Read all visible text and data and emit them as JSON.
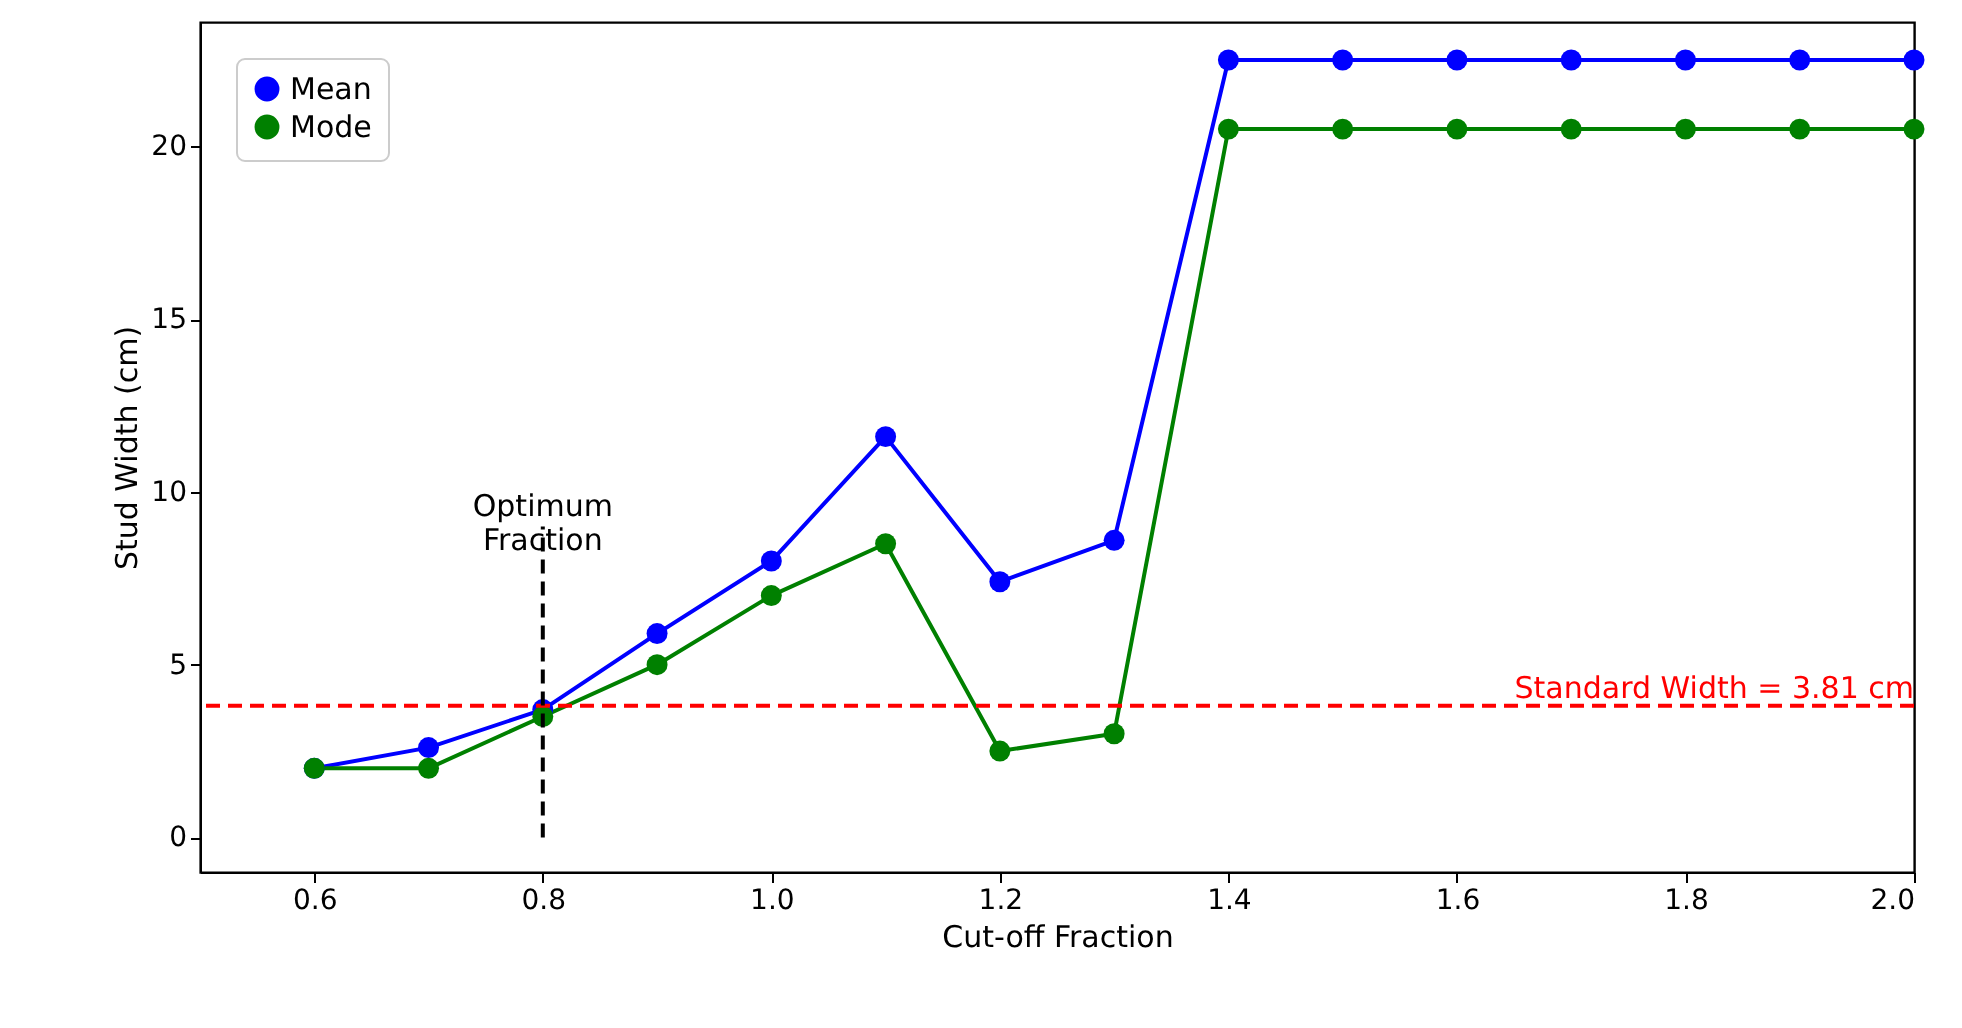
{
  "chart_data": {
    "type": "line",
    "xlabel": "Cut-off Fraction",
    "ylabel": "Stud Width (cm)",
    "x": [
      0.6,
      0.7,
      0.8,
      0.9,
      1.0,
      1.1,
      1.2,
      1.3,
      1.4,
      1.5,
      1.6,
      1.7,
      1.8,
      1.9,
      2.0
    ],
    "series": [
      {
        "name": "Mean",
        "color": "#0000ff",
        "values": [
          2.0,
          2.6,
          3.7,
          5.9,
          8.0,
          11.6,
          7.4,
          8.6,
          22.5,
          22.5,
          22.5,
          22.5,
          22.5,
          22.5,
          22.5
        ]
      },
      {
        "name": "Mode",
        "color": "#008000",
        "values": [
          2.0,
          2.0,
          3.5,
          5.0,
          7.0,
          8.5,
          2.5,
          3.0,
          20.5,
          20.5,
          20.5,
          20.5,
          20.5,
          20.5,
          20.5
        ]
      }
    ],
    "xlim": [
      0.5,
      2.0
    ],
    "xticks": [
      0.6,
      0.8,
      {
        "value": 1,
        "label": "1.0"
      },
      1.2,
      1.4,
      1.6,
      1.8,
      {
        "value": 2,
        "label": "2.0"
      }
    ],
    "ylim": [
      -1,
      23.6
    ],
    "yticks": [
      0,
      5,
      10,
      15,
      20
    ],
    "ref_lines": [
      {
        "axis": "y",
        "value": 3.81,
        "label": "Standard Width = 3.81 cm",
        "color": "#ff0000",
        "line_style": "dashed"
      },
      {
        "axis": "x",
        "value": 0.8,
        "color": "#000000",
        "line_style": "dashed"
      }
    ],
    "annotations": [
      {
        "text": "Optimum\nFraction",
        "x": 0.8,
        "y": 9.0
      }
    ],
    "marker": "circle",
    "line_style": "solid",
    "grid": false,
    "legend": "top left"
  }
}
